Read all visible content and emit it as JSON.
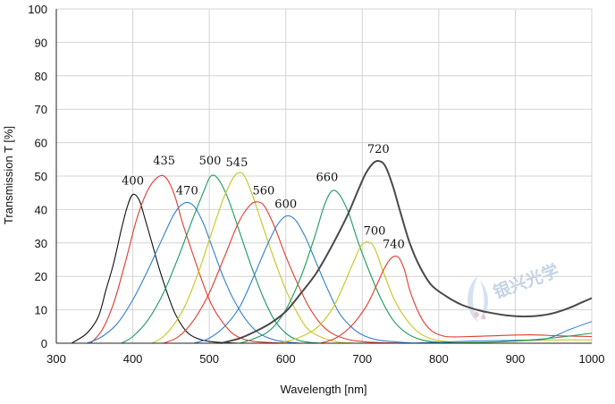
{
  "chart_data": {
    "type": "line",
    "title": "",
    "xlabel": "Wavelength [nm]",
    "ylabel": "Transmission T [%]",
    "xlim": [
      300,
      1000
    ],
    "ylim": [
      0,
      100
    ],
    "xticks": [
      "300",
      "400",
      "500",
      "600",
      "700",
      "800",
      "900",
      "1000"
    ],
    "yticks": [
      "0",
      "10",
      "20",
      "30",
      "40",
      "50",
      "60",
      "70",
      "80",
      "90",
      "100"
    ],
    "grid": true,
    "watermark_text": "银兴光学",
    "series": [
      {
        "name": "400",
        "label": "400",
        "color": "#111111",
        "width": 1.1,
        "points": [
          [
            320,
            0
          ],
          [
            340,
            3
          ],
          [
            355,
            8
          ],
          [
            365,
            16
          ],
          [
            375,
            24
          ],
          [
            385,
            34
          ],
          [
            393,
            41
          ],
          [
            400,
            44.5
          ],
          [
            408,
            43
          ],
          [
            415,
            38
          ],
          [
            425,
            30
          ],
          [
            435,
            22
          ],
          [
            445,
            15
          ],
          [
            455,
            9
          ],
          [
            465,
            5
          ],
          [
            475,
            2.5
          ],
          [
            490,
            1
          ],
          [
            510,
            0.3
          ],
          [
            540,
            0
          ]
        ]
      },
      {
        "name": "435",
        "label": "435",
        "color": "#e03a2e",
        "width": 1.1,
        "points": [
          [
            345,
            0
          ],
          [
            360,
            4
          ],
          [
            375,
            12
          ],
          [
            390,
            24
          ],
          [
            405,
            37
          ],
          [
            420,
            46
          ],
          [
            435,
            50
          ],
          [
            445,
            49
          ],
          [
            455,
            44
          ],
          [
            465,
            36
          ],
          [
            478,
            27
          ],
          [
            490,
            19
          ],
          [
            502,
            12
          ],
          [
            515,
            7
          ],
          [
            530,
            3
          ],
          [
            545,
            1.2
          ],
          [
            560,
            0.5
          ],
          [
            580,
            0.2
          ],
          [
            600,
            0
          ]
        ]
      },
      {
        "name": "470",
        "label": "470",
        "color": "#2f7fd0",
        "width": 1.1,
        "points": [
          [
            340,
            0
          ],
          [
            360,
            2
          ],
          [
            380,
            6
          ],
          [
            400,
            13
          ],
          [
            420,
            22
          ],
          [
            440,
            32
          ],
          [
            455,
            39
          ],
          [
            468,
            42
          ],
          [
            480,
            41
          ],
          [
            492,
            36
          ],
          [
            505,
            28
          ],
          [
            518,
            20
          ],
          [
            532,
            13
          ],
          [
            548,
            7
          ],
          [
            565,
            3
          ],
          [
            585,
            1
          ],
          [
            605,
            0.3
          ],
          [
            620,
            0
          ]
        ]
      },
      {
        "name": "500",
        "label": "500",
        "color": "#1a9a5e",
        "width": 1.1,
        "points": [
          [
            385,
            0
          ],
          [
            400,
            2
          ],
          [
            420,
            7
          ],
          [
            440,
            15
          ],
          [
            460,
            26
          ],
          [
            478,
            37
          ],
          [
            492,
            45
          ],
          [
            502,
            50
          ],
          [
            512,
            49
          ],
          [
            525,
            43
          ],
          [
            540,
            33
          ],
          [
            555,
            23
          ],
          [
            570,
            14
          ],
          [
            585,
            7
          ],
          [
            600,
            3
          ],
          [
            615,
            1
          ],
          [
            630,
            0.3
          ],
          [
            645,
            0
          ]
        ]
      },
      {
        "name": "545",
        "label": "545",
        "color": "#c6c61c",
        "width": 1.1,
        "points": [
          [
            425,
            0
          ],
          [
            440,
            2
          ],
          [
            455,
            6
          ],
          [
            470,
            12
          ],
          [
            487,
            22
          ],
          [
            503,
            33
          ],
          [
            518,
            43
          ],
          [
            530,
            49
          ],
          [
            538,
            51
          ],
          [
            546,
            50
          ],
          [
            557,
            44
          ],
          [
            570,
            35
          ],
          [
            585,
            25
          ],
          [
            600,
            16
          ],
          [
            615,
            9
          ],
          [
            630,
            4
          ],
          [
            650,
            1.5
          ],
          [
            670,
            0.3
          ],
          [
            690,
            0
          ]
        ]
      },
      {
        "name": "560",
        "label": "560",
        "color": "#e03a2e",
        "width": 1.1,
        "points": [
          [
            440,
            0
          ],
          [
            460,
            2
          ],
          [
            480,
            7
          ],
          [
            500,
            15
          ],
          [
            520,
            26
          ],
          [
            538,
            36
          ],
          [
            552,
            41
          ],
          [
            562,
            42.3
          ],
          [
            572,
            41
          ],
          [
            585,
            35
          ],
          [
            600,
            26
          ],
          [
            615,
            18
          ],
          [
            630,
            11
          ],
          [
            645,
            6
          ],
          [
            660,
            3
          ],
          [
            680,
            1.2
          ],
          [
            700,
            0.5
          ],
          [
            720,
            0.2
          ],
          [
            760,
            0
          ]
        ]
      },
      {
        "name": "600",
        "label": "600",
        "color": "#2f7fd0",
        "width": 1.1,
        "points": [
          [
            480,
            0
          ],
          [
            500,
            1.5
          ],
          [
            520,
            5
          ],
          [
            540,
            11
          ],
          [
            560,
            21
          ],
          [
            575,
            29
          ],
          [
            588,
            35
          ],
          [
            600,
            38
          ],
          [
            612,
            37
          ],
          [
            625,
            32
          ],
          [
            640,
            24
          ],
          [
            655,
            16
          ],
          [
            670,
            9
          ],
          [
            685,
            5
          ],
          [
            700,
            2.5
          ],
          [
            720,
            1
          ],
          [
            745,
            0.4
          ],
          [
            770,
            0
          ]
        ]
      },
      {
        "name": "660",
        "label": "660",
        "color": "#1a9a5e",
        "width": 1.1,
        "points": [
          [
            540,
            0
          ],
          [
            560,
            1.5
          ],
          [
            580,
            4
          ],
          [
            600,
            10
          ],
          [
            620,
            20
          ],
          [
            638,
            32
          ],
          [
            650,
            41
          ],
          [
            660,
            45.5
          ],
          [
            670,
            44.5
          ],
          [
            682,
            39
          ],
          [
            695,
            30
          ],
          [
            710,
            21
          ],
          [
            725,
            13
          ],
          [
            740,
            7
          ],
          [
            758,
            3
          ],
          [
            778,
            1
          ],
          [
            800,
            0.3
          ],
          [
            830,
            0
          ]
        ]
      },
      {
        "name": "700",
        "label": "700",
        "color": "#c6c61c",
        "width": 1.1,
        "points": [
          [
            590,
            0
          ],
          [
            615,
            1.5
          ],
          [
            640,
            4.5
          ],
          [
            660,
            10
          ],
          [
            675,
            17
          ],
          [
            688,
            24
          ],
          [
            698,
            29
          ],
          [
            707,
            30.3
          ],
          [
            716,
            28.5
          ],
          [
            728,
            21
          ],
          [
            742,
            13
          ],
          [
            758,
            7
          ],
          [
            775,
            3
          ],
          [
            795,
            1
          ],
          [
            820,
            0.4
          ],
          [
            860,
            0.3
          ],
          [
            900,
            0.6
          ],
          [
            950,
            1
          ],
          [
            1000,
            1
          ]
        ]
      },
      {
        "name": "740",
        "label": "740",
        "color": "#e03a2e",
        "width": 1.1,
        "points": [
          [
            645,
            0
          ],
          [
            665,
            1.5
          ],
          [
            685,
            5
          ],
          [
            705,
            11
          ],
          [
            718,
            17
          ],
          [
            728,
            22
          ],
          [
            736,
            25
          ],
          [
            742,
            26
          ],
          [
            748,
            25.5
          ],
          [
            755,
            22
          ],
          [
            762,
            16
          ],
          [
            770,
            11
          ],
          [
            780,
            6.5
          ],
          [
            792,
            3.5
          ],
          [
            810,
            2
          ],
          [
            840,
            2
          ],
          [
            880,
            2.3
          ],
          [
            920,
            2.5
          ],
          [
            960,
            2.2
          ],
          [
            1000,
            2
          ]
        ]
      },
      {
        "name": "720",
        "label": "720",
        "color": "#4a4a4a",
        "width": 2.0,
        "points": [
          [
            515,
            0
          ],
          [
            540,
            1.5
          ],
          [
            560,
            3.5
          ],
          [
            580,
            6
          ],
          [
            600,
            9.5
          ],
          [
            620,
            15
          ],
          [
            640,
            21
          ],
          [
            660,
            29
          ],
          [
            680,
            38
          ],
          [
            695,
            46
          ],
          [
            705,
            51
          ],
          [
            715,
            54
          ],
          [
            722,
            54.5
          ],
          [
            730,
            53
          ],
          [
            740,
            47
          ],
          [
            750,
            39
          ],
          [
            762,
            30
          ],
          [
            775,
            23
          ],
          [
            790,
            17.5
          ],
          [
            810,
            14
          ],
          [
            830,
            11.5
          ],
          [
            850,
            10
          ],
          [
            870,
            9
          ],
          [
            890,
            8.3
          ],
          [
            910,
            8
          ],
          [
            930,
            8.2
          ],
          [
            950,
            9
          ],
          [
            970,
            10.5
          ],
          [
            985,
            12
          ],
          [
            1000,
            13.5
          ]
        ]
      },
      {
        "name": "nir-blue",
        "label": "",
        "color": "#2f7fd0",
        "width": 1.0,
        "points": [
          [
            760,
            0
          ],
          [
            800,
            0.3
          ],
          [
            850,
            0.7
          ],
          [
            900,
            0.9
          ],
          [
            940,
            1.3
          ],
          [
            970,
            4
          ],
          [
            1000,
            6.5
          ]
        ]
      },
      {
        "name": "nir-green",
        "label": "",
        "color": "#1a9a5e",
        "width": 1.0,
        "points": [
          [
            800,
            0
          ],
          [
            850,
            0.2
          ],
          [
            900,
            0.7
          ],
          [
            950,
            1.6
          ],
          [
            1000,
            3
          ]
        ]
      }
    ],
    "annotations": [
      {
        "text": "400",
        "x": 400,
        "y": 47.5
      },
      {
        "text": "435",
        "x": 441,
        "y": 53.5
      },
      {
        "text": "470",
        "x": 471,
        "y": 44.5
      },
      {
        "text": "500",
        "x": 501,
        "y": 53.5
      },
      {
        "text": "545",
        "x": 536,
        "y": 53
      },
      {
        "text": "560",
        "x": 571,
        "y": 44.5
      },
      {
        "text": "600",
        "x": 600,
        "y": 40.5
      },
      {
        "text": "660",
        "x": 654,
        "y": 48.5
      },
      {
        "text": "720",
        "x": 721,
        "y": 57
      },
      {
        "text": "700",
        "x": 716,
        "y": 32.5
      },
      {
        "text": "740",
        "x": 741,
        "y": 28.5
      }
    ]
  }
}
